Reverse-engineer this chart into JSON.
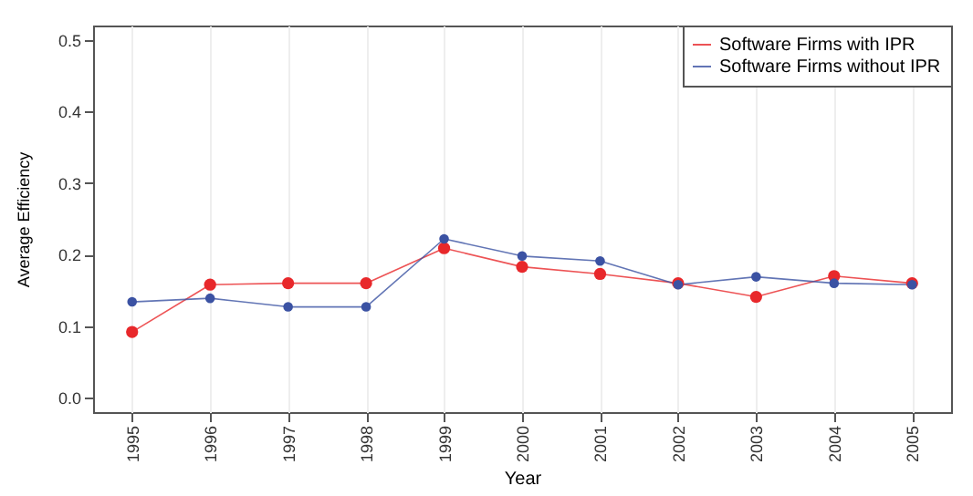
{
  "chart_data": {
    "type": "line",
    "xlabel": "Year",
    "ylabel": "Average Efficiency",
    "categories": [
      "1995",
      "1996",
      "1997",
      "1998",
      "1999",
      "2000",
      "2001",
      "2002",
      "2003",
      "2004",
      "2005"
    ],
    "series": [
      {
        "name": "Software Firms with IPR",
        "color": "#e8282b",
        "values": [
          0.092,
          0.158,
          0.16,
          0.16,
          0.209,
          0.183,
          0.173,
          0.16,
          0.141,
          0.17,
          0.16
        ]
      },
      {
        "name": "Software Firms without IPR",
        "color": "#3b52a3",
        "values": [
          0.134,
          0.139,
          0.127,
          0.127,
          0.222,
          0.198,
          0.191,
          0.158,
          0.169,
          0.16,
          0.158
        ]
      }
    ],
    "ylim": [
      -0.02,
      0.52
    ],
    "yticks": [
      {
        "value": 0,
        "label": "0.0"
      },
      {
        "value": 0.1,
        "label": "0.1"
      },
      {
        "value": 0.2,
        "label": "0.2"
      },
      {
        "value": 0.3,
        "label": "0.3"
      },
      {
        "value": 0.4,
        "label": "0.4"
      },
      {
        "value": 0.5,
        "label": "0.5"
      }
    ],
    "grid": "x",
    "legend": "top right",
    "marker": "circle",
    "line_style": "solid"
  }
}
